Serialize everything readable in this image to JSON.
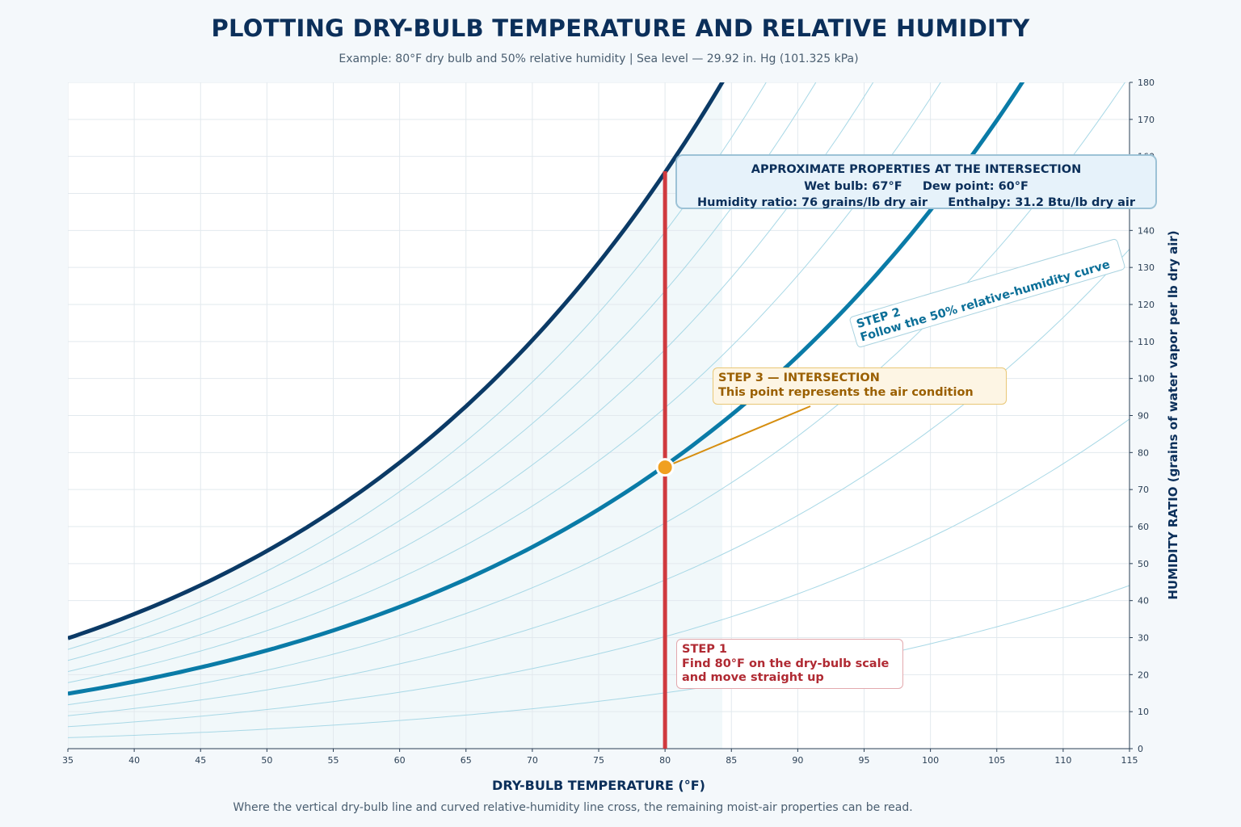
{
  "title": "PLOTTING DRY-BULB TEMPERATURE AND RELATIVE HUMIDITY",
  "subtitle": "Example: 80°F dry bulb and 50% relative humidity  |  Sea level — 29.92 in. Hg (101.325 kPa)",
  "footnote": "Where the vertical dry-bulb line and curved relative-humidity line cross, the remaining moist-air properties can be read.",
  "colors": {
    "saturation": "#0b3a66",
    "rh50": "#0a7ba7",
    "rh_grid": "#a8d8e6",
    "dry_bulb_line": "#d03a3f",
    "intersection": "#f0a020",
    "background": "#f4f8fb"
  },
  "annotations": {
    "properties": {
      "heading": "APPROXIMATE PROPERTIES AT THE INTERSECTION",
      "line1": "Wet bulb: 67°F     Dew point: 60°F",
      "line2": "Humidity ratio: 76 grains/lb dry air     Enthalpy: 31.2 Btu/lb dry air"
    },
    "step1": {
      "line1": "STEP 1",
      "line2": "Find 80°F on the dry-bulb scale",
      "line3": "and move straight up"
    },
    "step2": {
      "line1": "STEP 2",
      "line2": "Follow the 50% relative-humidity curve"
    },
    "step3": {
      "line1": "STEP 3 — INTERSECTION",
      "line2": "This point represents the air condition"
    }
  },
  "chart_data": {
    "type": "line",
    "xlabel": "DRY-BULB TEMPERATURE (°F)",
    "ylabel": "HUMIDITY RATIO (grains of water vapor per lb dry air)",
    "xlim": [
      35,
      115
    ],
    "ylim": [
      0,
      180
    ],
    "xticks": [
      35,
      40,
      45,
      50,
      55,
      60,
      65,
      70,
      75,
      80,
      85,
      90,
      95,
      100,
      105,
      110,
      115
    ],
    "yticks": [
      0,
      10,
      20,
      30,
      40,
      50,
      60,
      70,
      80,
      90,
      100,
      110,
      120,
      130,
      140,
      150,
      160,
      170,
      180
    ],
    "y_axis_side": "right",
    "grid": true,
    "relative_humidity_curves_percent": [
      10,
      20,
      30,
      40,
      50,
      60,
      70,
      80,
      90,
      100
    ],
    "highlighted_series": [
      {
        "name": "saturation",
        "x": [
          35,
          40,
          45,
          50,
          55,
          60,
          65,
          70,
          75,
          80,
          84
        ],
        "values": [
          30,
          36,
          44,
          54,
          64,
          77,
          92,
          110,
          131,
          156,
          180
        ]
      },
      {
        "name": "50%",
        "x": [
          35,
          40,
          45,
          50,
          55,
          60,
          65,
          70,
          75,
          80,
          85,
          90,
          95,
          100,
          105,
          107
        ],
        "values": [
          15,
          18,
          22,
          27,
          32,
          38,
          46,
          55,
          65,
          76,
          90,
          106,
          125,
          147,
          170,
          180
        ]
      }
    ],
    "dry_bulb_line": {
      "x": 80,
      "y_range": [
        0,
        156
      ]
    },
    "intersection": {
      "x": 80,
      "y": 76
    }
  }
}
